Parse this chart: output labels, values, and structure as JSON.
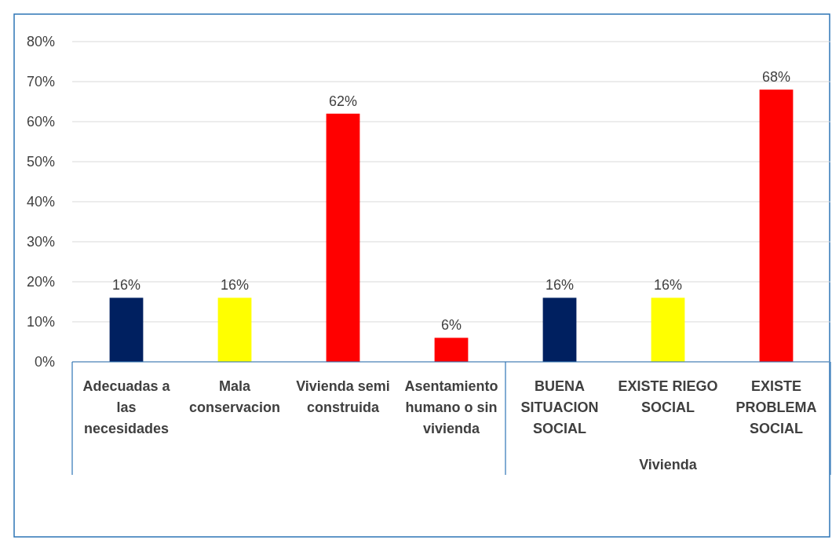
{
  "chart_data": {
    "type": "bar",
    "categories": [
      "Adecuadas a las necesidades",
      "Mala conservacion",
      "Vivienda semi construida",
      "Asentamiento humano o sin vivienda",
      "BUENA SITUACION SOCIAL",
      "EXISTE RIEGO SOCIAL",
      "EXISTE PROBLEMA SOCIAL"
    ],
    "values": [
      16,
      16,
      62,
      6,
      16,
      16,
      68
    ],
    "colors": [
      "#002060",
      "#ffff00",
      "#ff0000",
      "#ff0000",
      "#002060",
      "#ffff00",
      "#ff0000"
    ],
    "value_labels": [
      "16%",
      "16%",
      "62%",
      "6%",
      "16%",
      "16%",
      "68%"
    ],
    "ylim": [
      0,
      80
    ],
    "yticks": [
      {
        "value": 0,
        "label": "0%"
      },
      {
        "value": 10,
        "label": "10%"
      },
      {
        "value": 20,
        "label": "20%"
      },
      {
        "value": 30,
        "label": "30%"
      },
      {
        "value": 40,
        "label": "40%"
      },
      {
        "value": 50,
        "label": "50%"
      },
      {
        "value": 60,
        "label": "60%"
      },
      {
        "value": 70,
        "label": "70%"
      },
      {
        "value": 80,
        "label": "80%"
      }
    ],
    "grid": "y",
    "annotations": [
      "Vivienda"
    ]
  }
}
